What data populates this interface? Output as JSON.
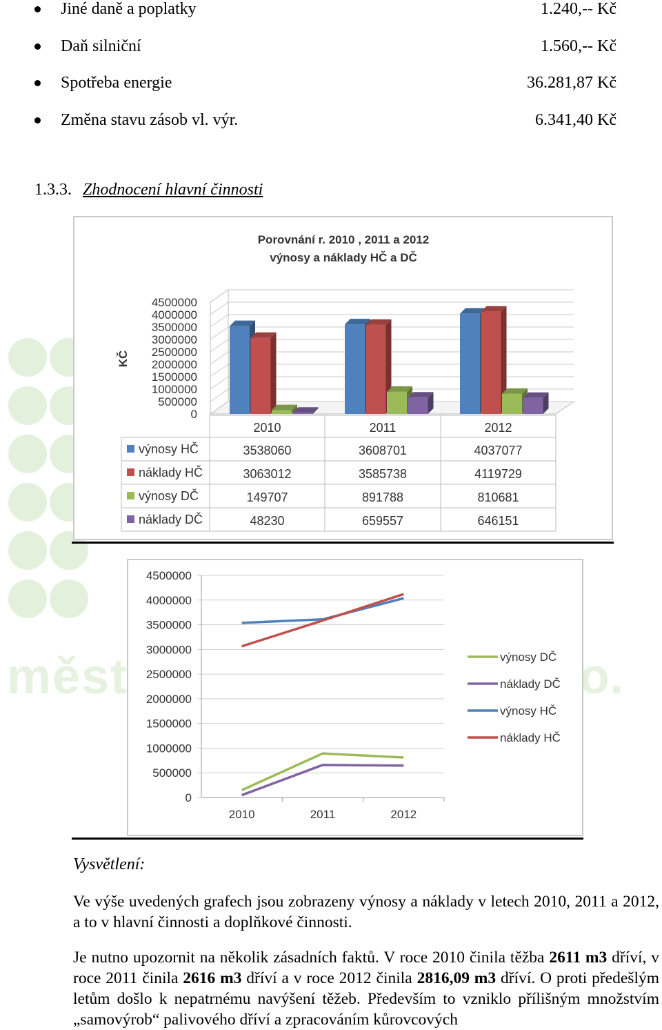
{
  "costs": [
    {
      "label": "Jiné daně a poplatky",
      "value": "1.240,-- Kč"
    },
    {
      "label": "Daň silniční",
      "value": "1.560,-- Kč"
    },
    {
      "label": "Spotřeba energie",
      "value": "36.281,87 Kč"
    },
    {
      "label": "Změna stavu zásob vl. výr.",
      "value": "6.341,40 Kč"
    }
  ],
  "section": {
    "number": "1.3.3.",
    "title": "Zhodnocení hlavní činnosti"
  },
  "chart_data": [
    {
      "type": "bar",
      "title": "Porovnání r. 2010 , 2011 a 2012",
      "subtitle": "výnosy a náklady HČ a DČ",
      "ylabel": "KČ",
      "categories": [
        "2010",
        "2011",
        "2012"
      ],
      "ylim": [
        0,
        4500000
      ],
      "ticks": [
        "4500000",
        "4000000",
        "3500000",
        "3000000",
        "2500000",
        "2000000",
        "1500000",
        "1000000",
        "500000",
        "0"
      ],
      "series": [
        {
          "name": "výnosy HČ",
          "values": [
            3538060,
            3608701,
            4037077
          ],
          "color": "#4f81bd"
        },
        {
          "name": "náklady HČ",
          "values": [
            3063012,
            3585738,
            4119729
          ],
          "color": "#c0504d"
        },
        {
          "name": "výnosy DČ",
          "values": [
            149707,
            891788,
            810681
          ],
          "color": "#9bbb59"
        },
        {
          "name": "náklady DČ",
          "values": [
            48230,
            659557,
            646151
          ],
          "color": "#8064a2"
        }
      ],
      "data_table": true
    },
    {
      "type": "line",
      "categories": [
        "2010",
        "2011",
        "2012"
      ],
      "ylim": [
        0,
        4500000
      ],
      "ticks": [
        "4500000",
        "4000000",
        "3500000",
        "3000000",
        "2500000",
        "2000000",
        "1500000",
        "1000000",
        "500000",
        "0"
      ],
      "legend_position": "right",
      "series": [
        {
          "name": "výnosy DČ",
          "values": [
            149707,
            891788,
            810681
          ],
          "color": "#9bbb59"
        },
        {
          "name": "náklady DČ",
          "values": [
            48230,
            659557,
            646151
          ],
          "color": "#8064a2"
        },
        {
          "name": "výnosy HČ",
          "values": [
            3538060,
            3608701,
            4037077
          ],
          "color": "#4f81bd"
        },
        {
          "name": "náklady HČ",
          "values": [
            3063012,
            3585738,
            4119729
          ],
          "color": "#c0504d"
        }
      ]
    }
  ],
  "explanation": {
    "heading": "Vysvětlení:",
    "p1": "Ve výše uvedených grafech jsou zobrazeny výnosy a náklady v letech 2010, 2011 a 2012, a to v hlavní činnosti a doplňkové činnosti.",
    "p2_a": "Je nutno upozornit na několik zásadních faktů. V roce 2010 činila těžba ",
    "p2_b": "2611 m3",
    "p2_c": " dříví, v roce 2011 činila ",
    "p2_d": "2616 m3",
    "p2_e": " dříví a v roce 2012 činila ",
    "p2_f": "2816,09 m3",
    "p2_g": " dříví. O proti předešlým letům došlo k nepatrnému navýšení těžeb. Především to vzniklo přílišným množstvím „samovýrob“ palivového dříví a zpracováním kůrovcových"
  },
  "watermark": {
    "left": "měst",
    "right": "o."
  }
}
